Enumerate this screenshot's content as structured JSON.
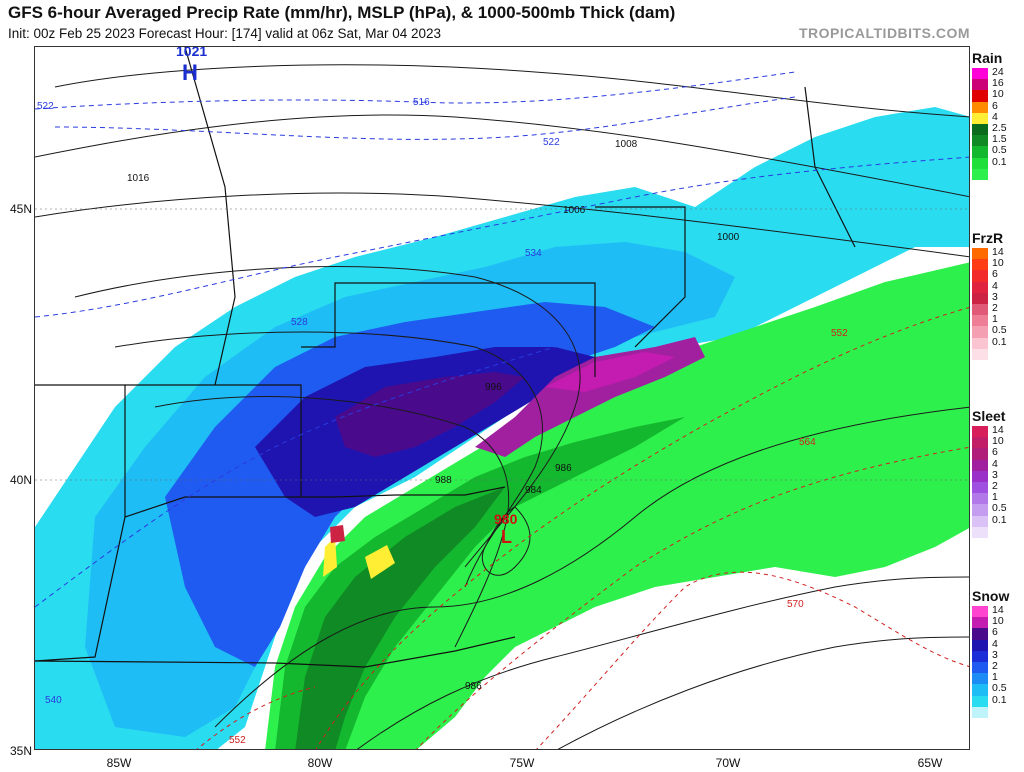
{
  "header": {
    "title": "GFS 6-hour Averaged Precip Rate (mm/hr), MSLP (hPa), & 1000-500mb Thick (dam)",
    "subtitle": "Init: 00z Feb 25 2023   Forecast Hour: [174]   valid at 06z Sat, Mar 04 2023",
    "site": "TROPICALTIDBITS.COM"
  },
  "axes": {
    "lat_labels": [
      "45N",
      "40N",
      "35N"
    ],
    "lon_labels": [
      "85W",
      "80W",
      "75W",
      "70W",
      "65W"
    ]
  },
  "map_labels": {
    "high_value": "1021",
    "high_letter": "H",
    "low_value": "980",
    "low_letter": "L",
    "isobars": [
      "1016",
      "1008",
      "1006",
      "1000",
      "996",
      "988",
      "986",
      "984",
      "986"
    ],
    "thickness": [
      "522",
      "516",
      "522",
      "534",
      "528",
      "552",
      "564",
      "570",
      "540",
      "552"
    ]
  },
  "legends": [
    {
      "title": "Rain",
      "items": [
        {
          "label": "24",
          "color": "#ff00d8"
        },
        {
          "label": "16",
          "color": "#cc0077"
        },
        {
          "label": "10",
          "color": "#e00000"
        },
        {
          "label": "6",
          "color": "#ff8c00"
        },
        {
          "label": "4",
          "color": "#ffee33"
        },
        {
          "label": "2.5",
          "color": "#0b6b1c"
        },
        {
          "label": "1.5",
          "color": "#0f8a24"
        },
        {
          "label": "0.5",
          "color": "#14b82e"
        },
        {
          "label": "0.1",
          "color": "#1fe03a"
        },
        {
          "label": "",
          "color": "#2ef04c"
        }
      ]
    },
    {
      "title": "FrzR",
      "items": [
        {
          "label": "14",
          "color": "#ff6a00"
        },
        {
          "label": "10",
          "color": "#ff3d14"
        },
        {
          "label": "6",
          "color": "#f22a2a"
        },
        {
          "label": "4",
          "color": "#e0243f"
        },
        {
          "label": "3",
          "color": "#cc2244"
        },
        {
          "label": "2",
          "color": "#e05a78"
        },
        {
          "label": "1",
          "color": "#ee7e96"
        },
        {
          "label": "0.5",
          "color": "#f5a0b2"
        },
        {
          "label": "0.1",
          "color": "#fac4d0"
        },
        {
          "label": "",
          "color": "#fde0e7"
        }
      ]
    },
    {
      "title": "Sleet",
      "items": [
        {
          "label": "14",
          "color": "#d81e5a"
        },
        {
          "label": "10",
          "color": "#c21e68"
        },
        {
          "label": "6",
          "color": "#b01e7a"
        },
        {
          "label": "4",
          "color": "#a020a0"
        },
        {
          "label": "3",
          "color": "#9a30c8"
        },
        {
          "label": "2",
          "color": "#a050e0"
        },
        {
          "label": "1",
          "color": "#b278ea"
        },
        {
          "label": "0.5",
          "color": "#c59df0"
        },
        {
          "label": "0.1",
          "color": "#dac2f6"
        },
        {
          "label": "",
          "color": "#ece0fb"
        }
      ]
    },
    {
      "title": "Snow",
      "items": [
        {
          "label": "14",
          "color": "#ff44d0"
        },
        {
          "label": "10",
          "color": "#c41bb0"
        },
        {
          "label": "6",
          "color": "#4a0a8c"
        },
        {
          "label": "4",
          "color": "#1f14b0"
        },
        {
          "label": "3",
          "color": "#1c2ed8"
        },
        {
          "label": "2",
          "color": "#1f5bf0"
        },
        {
          "label": "1",
          "color": "#1e8cf5"
        },
        {
          "label": "0.5",
          "color": "#1fbdf5"
        },
        {
          "label": "0.1",
          "color": "#29dcf0"
        },
        {
          "label": "",
          "color": "#bff4fa"
        }
      ]
    }
  ]
}
